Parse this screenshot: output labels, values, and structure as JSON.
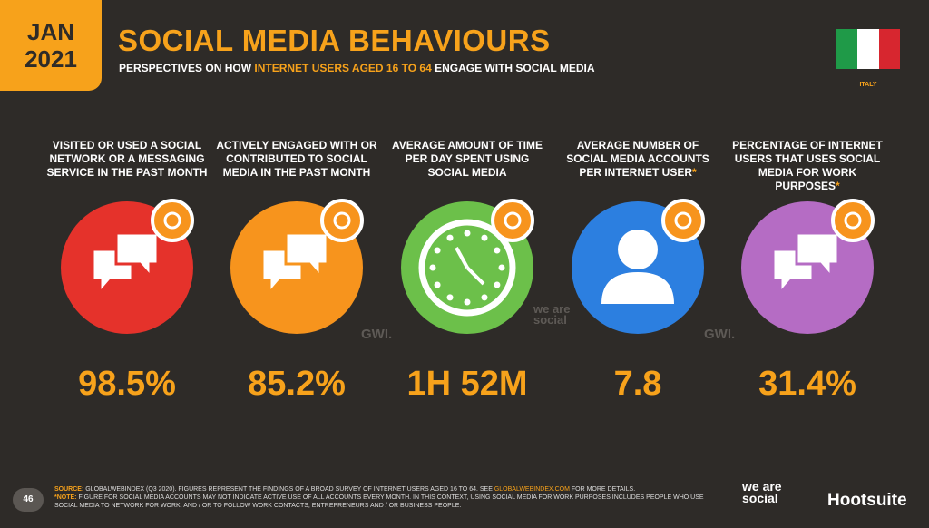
{
  "header": {
    "date_month": "JAN",
    "date_year": "2021",
    "title": "SOCIAL MEDIA BEHAVIOURS",
    "subtitle_start": "PERSPECTIVES ON HOW ",
    "subtitle_highlight": "INTERNET USERS AGED 16 TO 64",
    "subtitle_end": " ENGAGE WITH SOCIAL MEDIA",
    "country": "ITALY"
  },
  "stats": [
    {
      "label": "VISITED OR USED A SOCIAL NETWORK OR A MESSAGING SERVICE IN THE PAST MONTH",
      "value": "98.5%",
      "color": "#e5322b"
    },
    {
      "label": "ACTIVELY ENGAGED WITH OR CONTRIBUTED TO SOCIAL MEDIA IN THE PAST MONTH",
      "value": "85.2%",
      "color": "#f7941d"
    },
    {
      "label": "AVERAGE AMOUNT OF TIME PER DAY SPENT USING SOCIAL MEDIA",
      "value": "1H 52M",
      "color": "#6cc04a"
    },
    {
      "label": "AVERAGE NUMBER OF SOCIAL MEDIA ACCOUNTS PER INTERNET USER",
      "note_mark": "*",
      "value": "7.8",
      "color": "#2c7fe0"
    },
    {
      "label": "PERCENTAGE OF INTERNET USERS THAT USES SOCIAL MEDIA FOR WORK PURPOSES",
      "note_mark": "*",
      "value": "31.4%",
      "color": "#b56cc4"
    }
  ],
  "watermarks": {
    "gwi_1": "GWI.",
    "was": "we are social",
    "gwi_2": "GWI."
  },
  "footer": {
    "source_label": "SOURCE:",
    "source_text": " GLOBALWEBINDEX (Q3 2020). FIGURES REPRESENT THE FINDINGS OF A BROAD SURVEY OF INTERNET USERS AGED 16 TO 64. SEE ",
    "source_link": "GLOBALWEBINDEX.COM",
    "source_end": " FOR MORE DETAILS.",
    "note_label": "*NOTE:",
    "note_text": " FIGURE FOR SOCIAL MEDIA ACCOUNTS MAY NOT INDICATE ACTIVE USE OF ALL ACCOUNTS EVERY MONTH. IN THIS CONTEXT, USING SOCIAL MEDIA FOR WORK PURPOSES INCLUDES PEOPLE WHO USE SOCIAL MEDIA TO NETWORK FOR WORK, AND / OR TO FOLLOW WORK CONTACTS, ENTREPRENEURS AND / OR BUSINESS PEOPLE.",
    "page_number": "46",
    "brand_1": "we are social",
    "brand_2": "Hootsuite"
  }
}
